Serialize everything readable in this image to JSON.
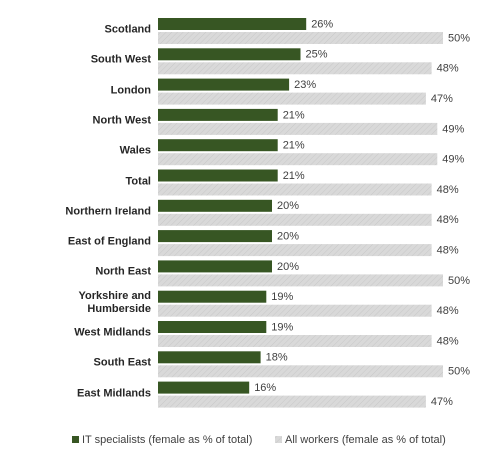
{
  "chart_data": {
    "type": "hbar",
    "categories": [
      "Scotland",
      "South West",
      "London",
      "North West",
      "Wales",
      "Total",
      "Northern Ireland",
      "East of England",
      "North East",
      "Yorkshire and Humberside",
      "West Midlands",
      "South East",
      "East Midlands"
    ],
    "series": [
      {
        "name": "IT specialists (female as % of total)",
        "color": "#375623",
        "values": [
          26,
          25,
          23,
          21,
          21,
          21,
          20,
          20,
          20,
          19,
          19,
          18,
          16
        ],
        "value_labels": [
          "26%",
          "25%",
          "23%",
          "21%",
          "21%",
          "21%",
          "20%",
          "20%",
          "20%",
          "19%",
          "19%",
          "18%",
          "16%"
        ]
      },
      {
        "name": "All workers (female as % of total)",
        "color": "#d9d9d9",
        "values": [
          50,
          48,
          47,
          49,
          49,
          48,
          48,
          48,
          50,
          48,
          48,
          50,
          47
        ],
        "value_labels": [
          "50%",
          "48%",
          "47%",
          "49%",
          "49%",
          "48%",
          "48%",
          "48%",
          "50%",
          "48%",
          "48%",
          "50%",
          "47%"
        ]
      }
    ],
    "legend": "bottom"
  }
}
